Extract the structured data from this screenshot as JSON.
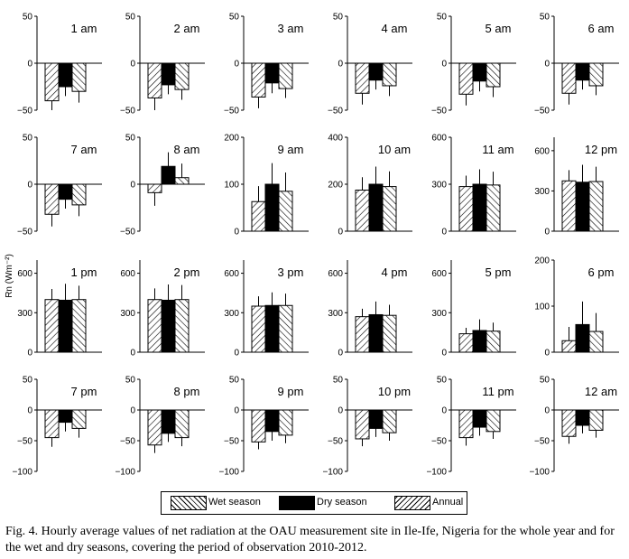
{
  "y_axis_label": "Rn (Wm⁻²)",
  "legend": {
    "wet": "Wet season",
    "dry": "Dry season",
    "annual": "Annual"
  },
  "caption": "Fig. 4. Hourly average values of net radiation at the OAU measurement site in Ile-Ife, Nigeria for the whole year and for the wet and dry seasons, covering the period of observation 2010-2012.",
  "chart_data": {
    "type": "bar",
    "series_names": [
      "Wet season",
      "Dry season",
      "Annual"
    ],
    "panels": [
      {
        "title": "1 am",
        "ylim": [
          -50,
          50
        ],
        "ticks": [
          -50,
          0,
          50
        ],
        "values": [
          -40,
          -25,
          -30
        ],
        "errors": [
          12,
          10,
          12
        ]
      },
      {
        "title": "2 am",
        "ylim": [
          -50,
          50
        ],
        "ticks": [
          -50,
          0,
          50
        ],
        "values": [
          -37,
          -23,
          -28
        ],
        "errors": [
          13,
          10,
          11
        ]
      },
      {
        "title": "3 am",
        "ylim": [
          -50,
          50
        ],
        "ticks": [
          -50,
          0,
          50
        ],
        "values": [
          -36,
          -21,
          -27
        ],
        "errors": [
          12,
          11,
          10
        ]
      },
      {
        "title": "4 am",
        "ylim": [
          -50,
          50
        ],
        "ticks": [
          -50,
          0,
          50
        ],
        "values": [
          -32,
          -18,
          -24
        ],
        "errors": [
          12,
          10,
          11
        ]
      },
      {
        "title": "5 am",
        "ylim": [
          -50,
          50
        ],
        "ticks": [
          -50,
          0,
          50
        ],
        "values": [
          -33,
          -19,
          -25
        ],
        "errors": [
          12,
          11,
          11
        ]
      },
      {
        "title": "6 am",
        "ylim": [
          -50,
          50
        ],
        "ticks": [
          -50,
          0,
          50
        ],
        "values": [
          -32,
          -18,
          -24
        ],
        "errors": [
          12,
          10,
          10
        ]
      },
      {
        "title": "7 am",
        "ylim": [
          -50,
          50
        ],
        "ticks": [
          -50,
          0,
          50
        ],
        "values": [
          -32,
          -16,
          -22
        ],
        "errors": [
          13,
          10,
          12
        ]
      },
      {
        "title": "8 am",
        "ylim": [
          -50,
          50
        ],
        "ticks": [
          -50,
          0,
          50
        ],
        "values": [
          -9,
          19,
          7
        ],
        "errors": [
          14,
          15,
          15
        ]
      },
      {
        "title": "9 am",
        "ylim": [
          0,
          200
        ],
        "ticks": [
          0,
          100,
          200
        ],
        "values": [
          63,
          100,
          85
        ],
        "errors": [
          33,
          45,
          40
        ]
      },
      {
        "title": "10 am",
        "ylim": [
          0,
          400
        ],
        "ticks": [
          0,
          200,
          400
        ],
        "values": [
          175,
          200,
          190
        ],
        "errors": [
          55,
          75,
          65
        ]
      },
      {
        "title": "11 am",
        "ylim": [
          0,
          600
        ],
        "ticks": [
          0,
          300,
          600
        ],
        "values": [
          285,
          300,
          295
        ],
        "errors": [
          70,
          95,
          85
        ]
      },
      {
        "title": "12 pm",
        "ylim": [
          0,
          700
        ],
        "ticks": [
          0,
          300,
          600
        ],
        "values": [
          375,
          365,
          370
        ],
        "errors": [
          80,
          130,
          110
        ]
      },
      {
        "title": "1 pm",
        "ylim": [
          0,
          700
        ],
        "ticks": [
          0,
          300,
          600
        ],
        "values": [
          400,
          395,
          400
        ],
        "errors": [
          80,
          125,
          105
        ]
      },
      {
        "title": "2 pm",
        "ylim": [
          0,
          700
        ],
        "ticks": [
          0,
          300,
          600
        ],
        "values": [
          400,
          395,
          400
        ],
        "errors": [
          85,
          120,
          110
        ]
      },
      {
        "title": "3 pm",
        "ylim": [
          0,
          700
        ],
        "ticks": [
          0,
          300,
          600
        ],
        "values": [
          350,
          355,
          355
        ],
        "errors": [
          75,
          100,
          90
        ]
      },
      {
        "title": "4 pm",
        "ylim": [
          0,
          700
        ],
        "ticks": [
          0,
          300,
          600
        ],
        "values": [
          270,
          285,
          280
        ],
        "errors": [
          60,
          100,
          80
        ]
      },
      {
        "title": "5 pm",
        "ylim": [
          0,
          700
        ],
        "ticks": [
          0,
          300,
          600
        ],
        "values": [
          140,
          165,
          160
        ],
        "errors": [
          45,
          85,
          65
        ]
      },
      {
        "title": "6 pm",
        "ylim": [
          0,
          200
        ],
        "ticks": [
          0,
          100,
          200
        ],
        "values": [
          25,
          60,
          45
        ],
        "errors": [
          30,
          50,
          40
        ]
      },
      {
        "title": "7 pm",
        "ylim": [
          -100,
          50
        ],
        "ticks": [
          -100,
          -50,
          0,
          50
        ],
        "values": [
          -45,
          -20,
          -30
        ],
        "errors": [
          15,
          15,
          15
        ]
      },
      {
        "title": "8 pm",
        "ylim": [
          -100,
          50
        ],
        "ticks": [
          -100,
          -50,
          0,
          50
        ],
        "values": [
          -57,
          -38,
          -45
        ],
        "errors": [
          13,
          14,
          14
        ]
      },
      {
        "title": "9 pm",
        "ylim": [
          -100,
          50
        ],
        "ticks": [
          -100,
          -50,
          0,
          50
        ],
        "values": [
          -52,
          -35,
          -41
        ],
        "errors": [
          12,
          15,
          13
        ]
      },
      {
        "title": "10 pm",
        "ylim": [
          -100,
          50
        ],
        "ticks": [
          -100,
          -50,
          0,
          50
        ],
        "values": [
          -47,
          -30,
          -37
        ],
        "errors": [
          12,
          14,
          13
        ]
      },
      {
        "title": "11 pm",
        "ylim": [
          -100,
          50
        ],
        "ticks": [
          -100,
          -50,
          0,
          50
        ],
        "values": [
          -45,
          -28,
          -35
        ],
        "errors": [
          13,
          14,
          12
        ]
      },
      {
        "title": "12 am",
        "ylim": [
          -100,
          50
        ],
        "ticks": [
          -100,
          -50,
          0,
          50
        ],
        "values": [
          -43,
          -25,
          -33
        ],
        "errors": [
          12,
          13,
          12
        ]
      }
    ]
  }
}
